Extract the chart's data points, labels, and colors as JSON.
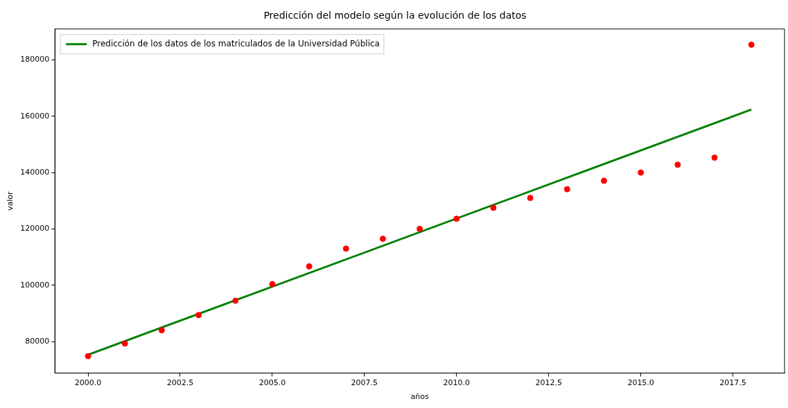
{
  "chart_data": {
    "type": "scatter",
    "title": "Predicción del modelo según la evolución de los datos",
    "xlabel": "años",
    "ylabel": "valor",
    "x": [
      2000,
      2001,
      2002,
      2003,
      2004,
      2005,
      2006,
      2007,
      2008,
      2009,
      2010,
      2011,
      2012,
      2013,
      2014,
      2015,
      2016,
      2017,
      2018
    ],
    "series": [
      {
        "type": "scatter",
        "color": "#ff0000",
        "marker": "circle",
        "values": [
          74800,
          79300,
          84000,
          89400,
          94500,
          100400,
          106700,
          113000,
          116500,
          120000,
          123600,
          127500,
          131000,
          134100,
          137100,
          140000,
          142800,
          145300,
          185400
        ]
      },
      {
        "type": "line",
        "name": "Predicción de los datos de los matriculados de la Universidad Pública",
        "color": "#008000",
        "marker": "none",
        "line_style": "solid",
        "x": [
          2000,
          2018
        ],
        "values": [
          75300,
          162400
        ]
      }
    ],
    "xlim": [
      1999.1,
      2018.9
    ],
    "ylim": [
      68800,
      191000
    ],
    "xticks": [
      {
        "value": 2000,
        "label": "2000.0"
      },
      {
        "value": 2002.5,
        "label": "2002.5"
      },
      {
        "value": 2005,
        "label": "2005.0"
      },
      {
        "value": 2007.5,
        "label": "2007.5"
      },
      {
        "value": 2010,
        "label": "2010.0"
      },
      {
        "value": 2012.5,
        "label": "2012.5"
      },
      {
        "value": 2015,
        "label": "2015.0"
      },
      {
        "value": 2017.5,
        "label": "2017.5"
      }
    ],
    "yticks": [
      80000,
      100000,
      120000,
      140000,
      160000,
      180000
    ],
    "grid": false,
    "legend": "top left"
  }
}
